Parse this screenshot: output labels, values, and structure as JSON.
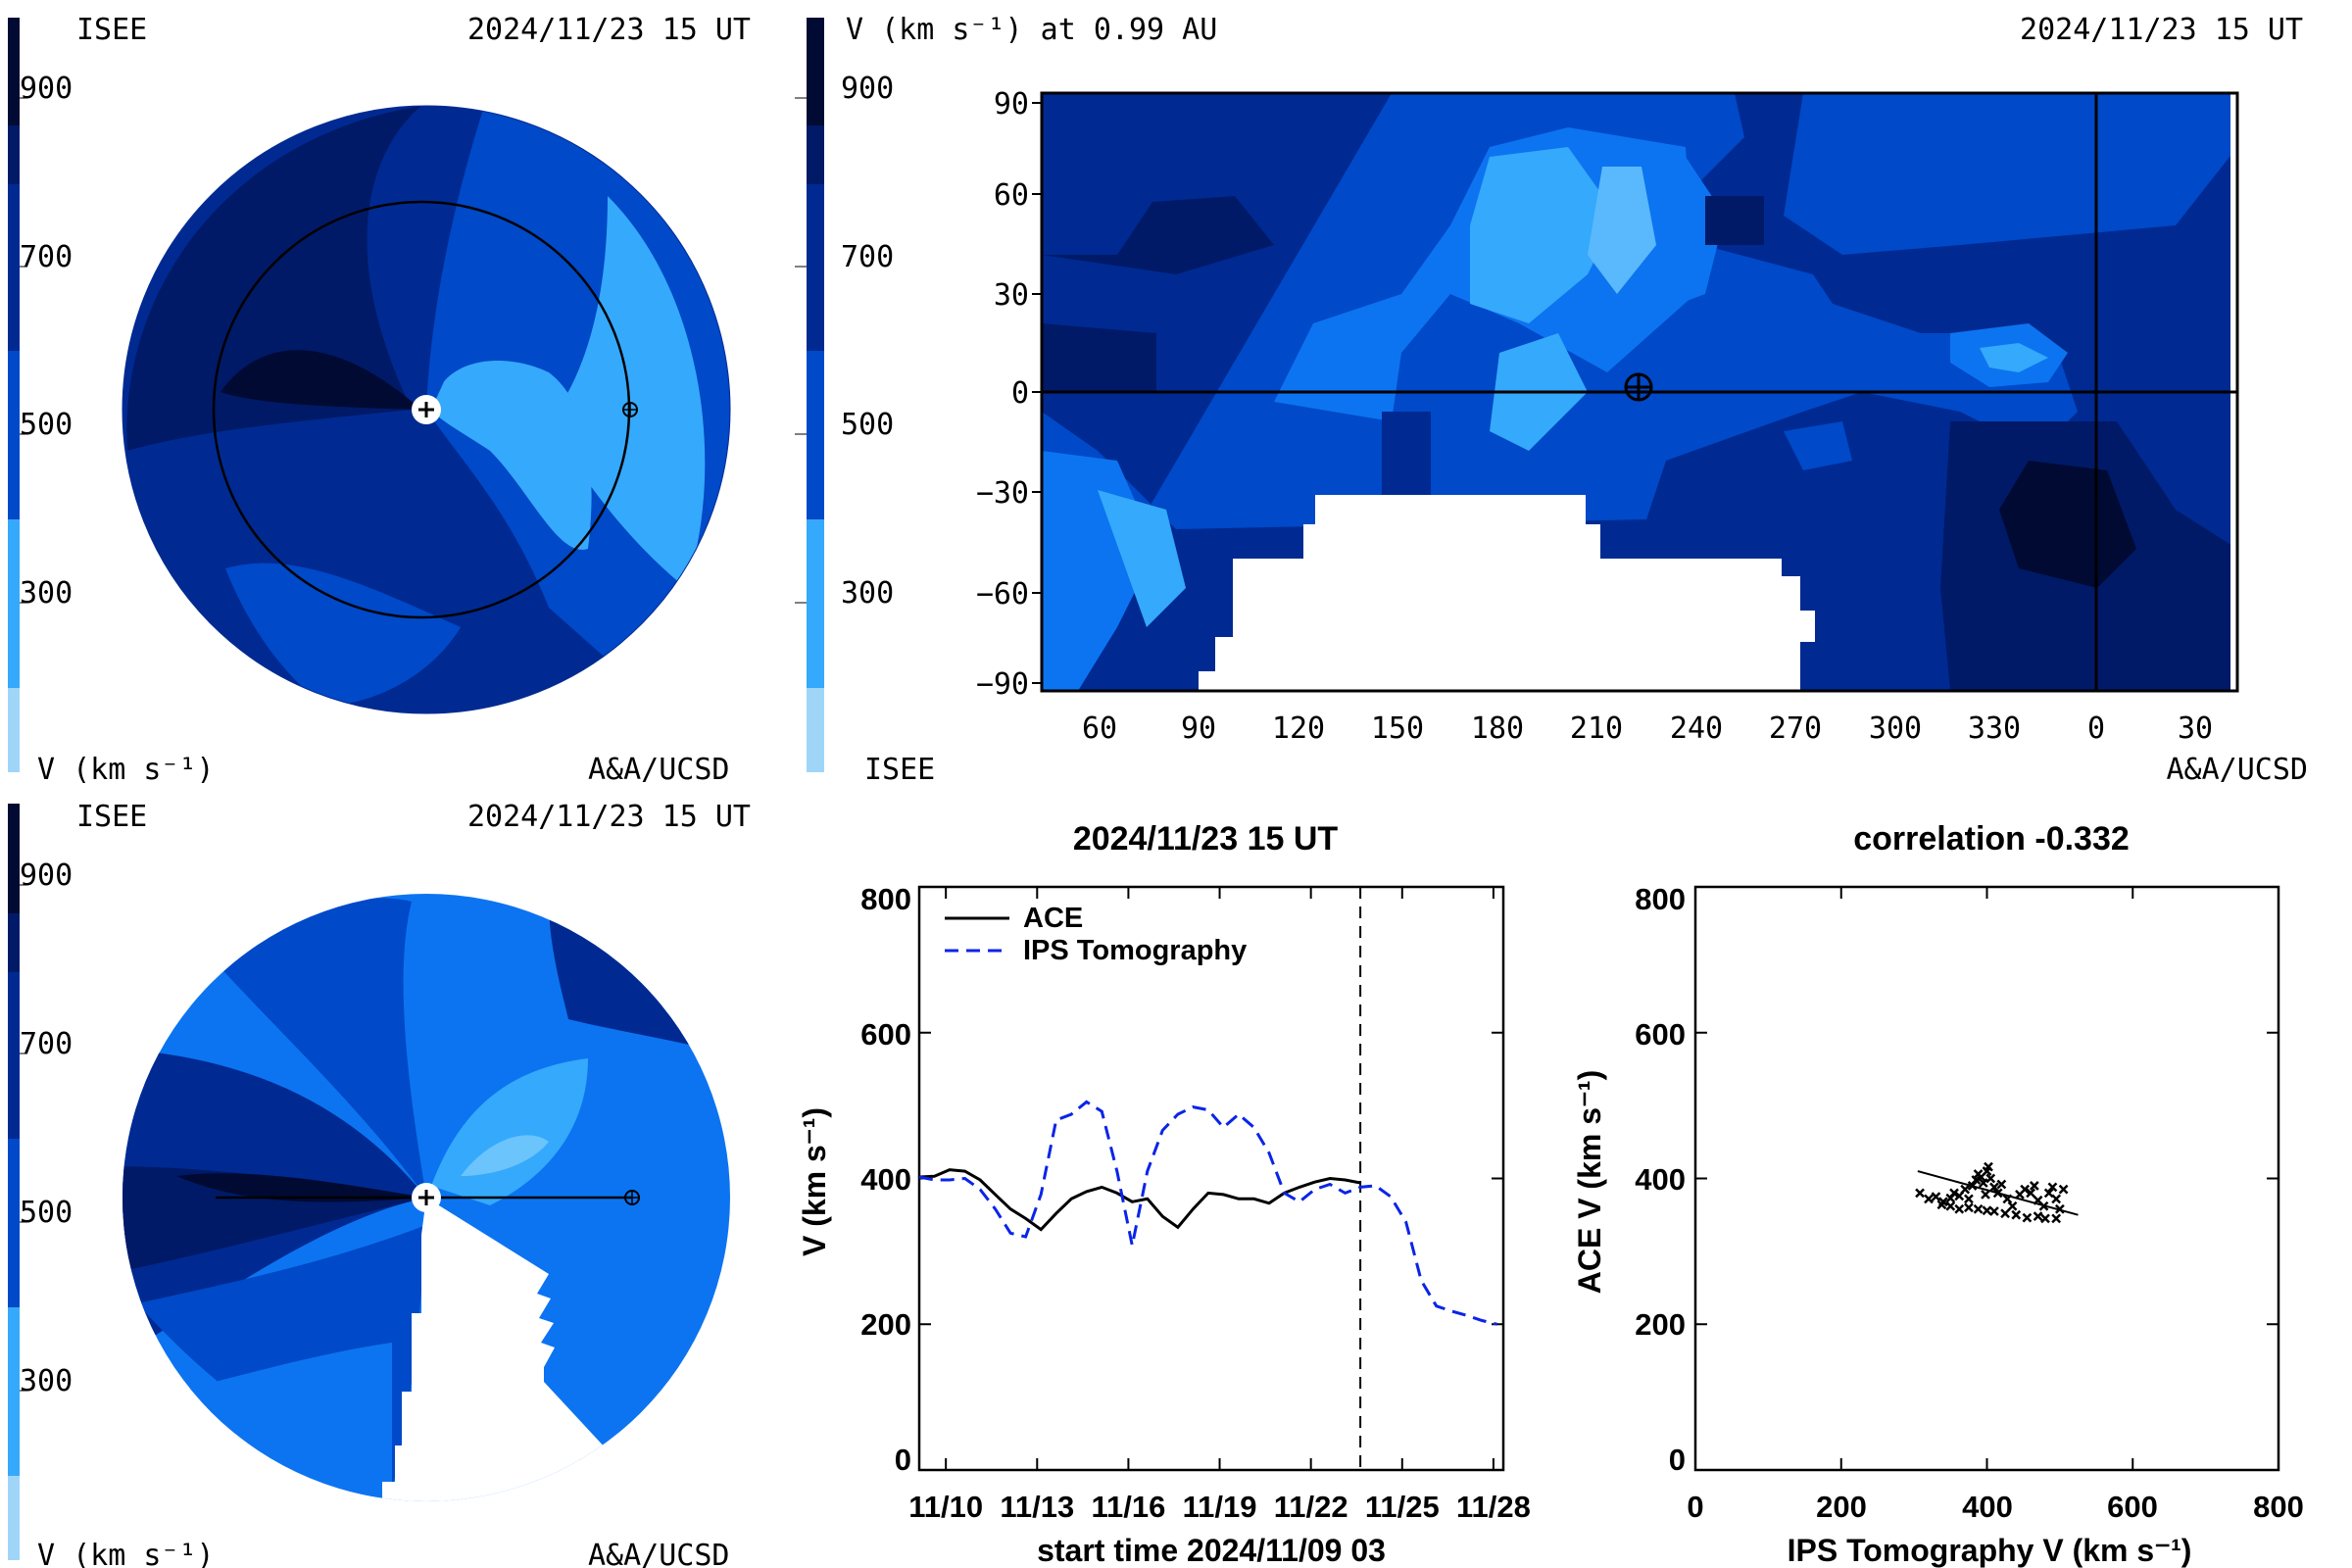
{
  "colors": {
    "scale": [
      "#9fd6f8",
      "#35a9fb",
      "#0c74f1",
      "#0049c8",
      "#002a92",
      "#001a68",
      "#000a33"
    ],
    "ace_line": "#000000",
    "ips_line": "#0a24e8"
  },
  "panels": {
    "polar_top": {
      "left_label": "ISEE",
      "date": "2024/11/23 15 UT",
      "unit_label": "V (km s⁻¹)",
      "credit": "A&A/UCSD",
      "scale_labels": [
        "900",
        "700",
        "500",
        "300"
      ]
    },
    "map": {
      "title": "V (km s⁻¹) at 0.99 AU",
      "date": "2024/11/23 15 UT",
      "left_label": "ISEE",
      "credit": "A&A/UCSD",
      "scale_labels": [
        "900",
        "700",
        "500",
        "300"
      ],
      "y_ticks": [
        "90",
        "60",
        "30",
        "0",
        "−30",
        "−60",
        "−90"
      ],
      "x_ticks": [
        "60",
        "90",
        "120",
        "150",
        "180",
        "210",
        "240",
        "270",
        "300",
        "330",
        "0",
        "30"
      ]
    },
    "polar_bottom": {
      "left_label": "ISEE",
      "date": "2024/11/23 15 UT",
      "unit_label": "V (km s⁻¹)",
      "credit": "A&A/UCSD",
      "scale_labels": [
        "900",
        "700",
        "500",
        "300"
      ]
    }
  },
  "chart_data": [
    {
      "type": "line",
      "title": "2024/11/23 15 UT",
      "xlabel": "start time 2024/11/09 03",
      "ylabel": "V (km s⁻¹)",
      "x_tick_labels": [
        "11/10",
        "11/13",
        "11/16",
        "11/19",
        "11/22",
        "11/25",
        "11/28"
      ],
      "x_tick_days": [
        0.875,
        3.875,
        6.875,
        9.875,
        12.875,
        15.875,
        18.875
      ],
      "x_range_days": [
        0,
        19.2
      ],
      "y_ticks": [
        "800",
        "600",
        "400",
        "200",
        "0"
      ],
      "ylim": [
        0,
        800
      ],
      "current_time_day": 14.5,
      "series": [
        {
          "name": "ACE",
          "style": "solid",
          "points": [
            [
              0,
              402
            ],
            [
              0.5,
              403
            ],
            [
              1,
              412
            ],
            [
              1.5,
              410
            ],
            [
              2,
              398
            ],
            [
              2.5,
              378
            ],
            [
              3,
              358
            ],
            [
              3.5,
              345
            ],
            [
              4,
              330
            ],
            [
              4.5,
              352
            ],
            [
              5,
              372
            ],
            [
              5.5,
              382
            ],
            [
              6,
              388
            ],
            [
              6.5,
              380
            ],
            [
              7,
              368
            ],
            [
              7.5,
              372
            ],
            [
              8,
              348
            ],
            [
              8.5,
              333
            ],
            [
              9,
              358
            ],
            [
              9.5,
              380
            ],
            [
              10,
              378
            ],
            [
              10.5,
              372
            ],
            [
              11,
              372
            ],
            [
              11.5,
              366
            ],
            [
              12,
              380
            ],
            [
              12.5,
              388
            ],
            [
              13,
              395
            ],
            [
              13.5,
              400
            ],
            [
              14,
              398
            ],
            [
              14.5,
              394
            ]
          ]
        },
        {
          "name": "IPS Tomography",
          "style": "dashed",
          "points": [
            [
              0,
              402
            ],
            [
              0.5,
              398
            ],
            [
              1,
              398
            ],
            [
              1.5,
              400
            ],
            [
              2,
              385
            ],
            [
              2.5,
              358
            ],
            [
              3,
              325
            ],
            [
              3.5,
              320
            ],
            [
              4,
              378
            ],
            [
              4.5,
              480
            ],
            [
              5,
              488
            ],
            [
              5.5,
              505
            ],
            [
              6,
              492
            ],
            [
              6.5,
              410
            ],
            [
              7,
              308
            ],
            [
              7.5,
              410
            ],
            [
              8,
              466
            ],
            [
              8.5,
              488
            ],
            [
              9,
              498
            ],
            [
              9.5,
              494
            ],
            [
              10,
              470
            ],
            [
              10.5,
              488
            ],
            [
              11,
              470
            ],
            [
              11.5,
              435
            ],
            [
              12,
              380
            ],
            [
              12.5,
              368
            ],
            [
              13,
              385
            ],
            [
              13.5,
              392
            ],
            [
              14,
              380
            ],
            [
              14.5,
              388
            ],
            [
              15,
              390
            ],
            [
              15.5,
              375
            ],
            [
              16,
              340
            ],
            [
              16.5,
              260
            ],
            [
              17,
              225
            ],
            [
              17.5,
              218
            ],
            [
              18,
              212
            ],
            [
              18.5,
              205
            ],
            [
              19,
              200
            ]
          ]
        }
      ],
      "legend": [
        "ACE",
        "IPS Tomography"
      ],
      "legend_position": "top-left"
    },
    {
      "type": "scatter",
      "title": "correlation -0.332",
      "xlabel": "IPS Tomography V (km s⁻¹)",
      "ylabel": "ACE V (km s⁻¹)",
      "x_ticks": [
        "0",
        "200",
        "400",
        "600",
        "800"
      ],
      "y_ticks": [
        "800",
        "600",
        "400",
        "200",
        "0"
      ],
      "xlim": [
        0,
        800
      ],
      "ylim": [
        0,
        800
      ],
      "fit_line": [
        [
          305,
          410
        ],
        [
          525,
          350
        ]
      ],
      "points": [
        [
          308,
          380
        ],
        [
          320,
          372
        ],
        [
          330,
          375
        ],
        [
          340,
          368
        ],
        [
          350,
          373
        ],
        [
          355,
          380
        ],
        [
          362,
          376
        ],
        [
          370,
          385
        ],
        [
          375,
          372
        ],
        [
          380,
          390
        ],
        [
          385,
          398
        ],
        [
          388,
          406
        ],
        [
          392,
          402
        ],
        [
          395,
          394
        ],
        [
          400,
          410
        ],
        [
          402,
          416
        ],
        [
          405,
          400
        ],
        [
          398,
          378
        ],
        [
          410,
          388
        ],
        [
          415,
          380
        ],
        [
          420,
          392
        ],
        [
          428,
          372
        ],
        [
          435,
          362
        ],
        [
          445,
          378
        ],
        [
          452,
          385
        ],
        [
          460,
          380
        ],
        [
          465,
          390
        ],
        [
          470,
          370
        ],
        [
          478,
          362
        ],
        [
          485,
          380
        ],
        [
          490,
          388
        ],
        [
          495,
          372
        ],
        [
          500,
          358
        ],
        [
          505,
          385
        ],
        [
          495,
          345
        ],
        [
          480,
          345
        ],
        [
          470,
          348
        ],
        [
          455,
          346
        ],
        [
          440,
          350
        ],
        [
          425,
          352
        ],
        [
          410,
          355
        ],
        [
          400,
          356
        ],
        [
          388,
          358
        ],
        [
          375,
          360
        ],
        [
          362,
          358
        ],
        [
          350,
          362
        ],
        [
          338,
          364
        ]
      ]
    }
  ]
}
